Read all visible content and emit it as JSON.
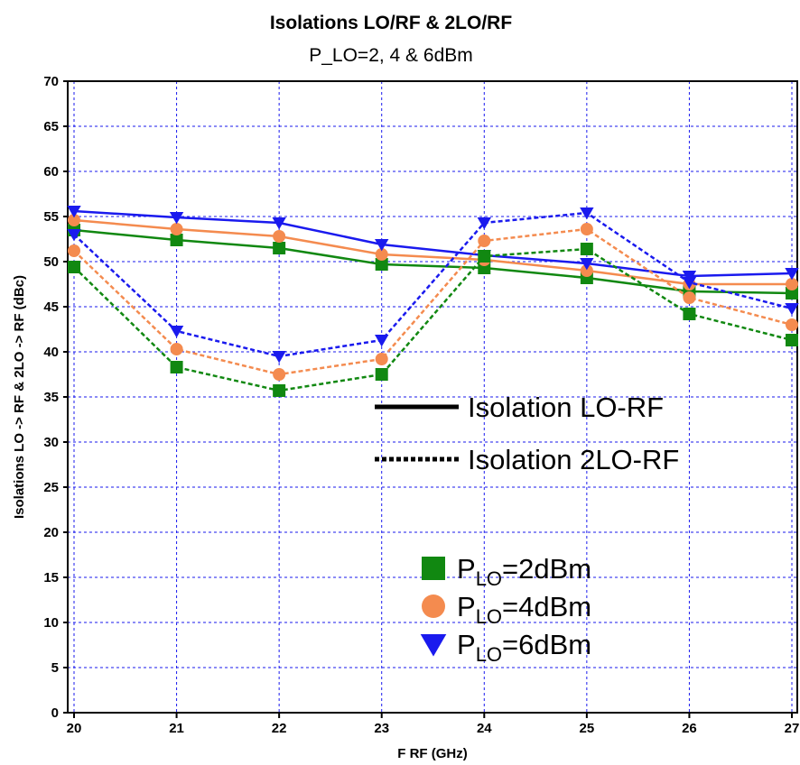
{
  "chart_data": {
    "type": "line",
    "title": "Isolations LO/RF & 2LO/RF",
    "subtitle": "P_LO=2, 4 & 6dBm",
    "xlabel": "F RF (GHz)",
    "ylabel": "Isolations LO -> RF & 2LO -> RF (dBc)",
    "x": [
      20,
      21,
      22,
      23,
      24,
      25,
      26,
      27
    ],
    "xlim": [
      20,
      27
    ],
    "ylim": [
      0,
      70
    ],
    "yticks": [
      0,
      5,
      10,
      15,
      20,
      25,
      30,
      35,
      40,
      45,
      50,
      55,
      60,
      65,
      70
    ],
    "grid": true,
    "series": [
      {
        "key": "lo_2",
        "line": "solid",
        "marker": "square",
        "color": "#118811",
        "values": [
          53.5,
          52.4,
          51.5,
          49.7,
          49.3,
          48.2,
          46.7,
          46.5
        ]
      },
      {
        "key": "lo_4",
        "line": "solid",
        "marker": "circle",
        "color": "#f48b4f",
        "values": [
          54.6,
          53.6,
          52.8,
          50.8,
          50.2,
          49.0,
          47.5,
          47.5
        ]
      },
      {
        "key": "lo_6",
        "line": "solid",
        "marker": "triangle",
        "color": "#1a1aee",
        "values": [
          55.6,
          54.9,
          54.3,
          51.9,
          50.7,
          49.8,
          48.4,
          48.7
        ]
      },
      {
        "key": "2lo_2",
        "line": "dashed",
        "marker": "square",
        "color": "#118811",
        "values": [
          49.4,
          38.3,
          35.7,
          37.5,
          50.6,
          51.4,
          44.2,
          41.3
        ]
      },
      {
        "key": "2lo_4",
        "line": "dashed",
        "marker": "circle",
        "color": "#f48b4f",
        "values": [
          51.2,
          40.3,
          37.5,
          39.2,
          52.3,
          53.6,
          46.0,
          43.0
        ]
      },
      {
        "key": "2lo_6",
        "line": "dashed",
        "marker": "triangle",
        "color": "#1a1aee",
        "values": [
          53.0,
          42.3,
          39.5,
          41.3,
          54.3,
          55.4,
          47.7,
          44.8
        ]
      }
    ],
    "line_legend": [
      {
        "style": "solid",
        "label": "Isolation LO-RF"
      },
      {
        "style": "dashed",
        "label": "Isolation 2LO-RF"
      }
    ],
    "marker_legend": [
      {
        "marker": "square",
        "color": "#118811",
        "label_main": "P",
        "label_sub": "LO",
        "label_rest": "=2dBm"
      },
      {
        "marker": "circle",
        "color": "#f48b4f",
        "label_main": "P",
        "label_sub": "LO",
        "label_rest": "=4dBm"
      },
      {
        "marker": "triangle",
        "color": "#1a1aee",
        "label_main": "P",
        "label_sub": "LO",
        "label_rest": "=6dBm"
      }
    ],
    "legend_placement": "inside-bottom-right",
    "grid_color": "#1a1aee"
  }
}
